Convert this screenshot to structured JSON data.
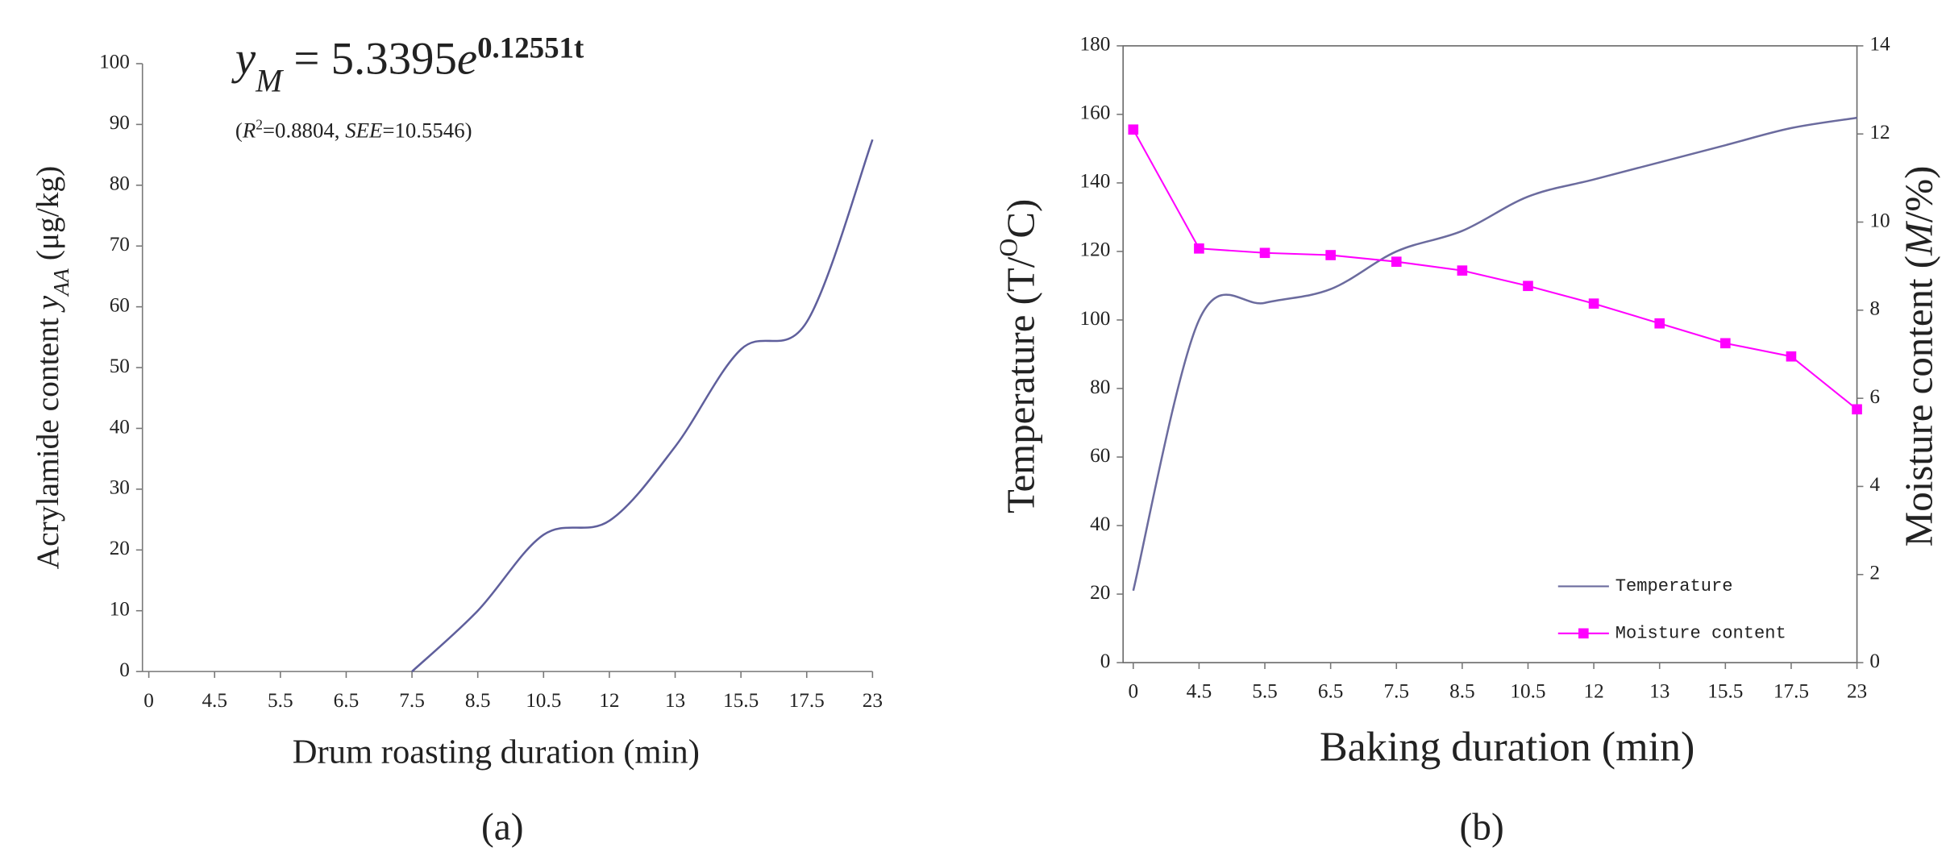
{
  "chart_data": [
    {
      "type": "line",
      "panel_label": "(a)",
      "equation": [
        {
          "text": "y",
          "style": "italic"
        },
        {
          "text": "M",
          "style": "sub-italic"
        },
        {
          "text": " = 5.3395"
        },
        {
          "text": "e",
          "style": "italic"
        },
        {
          "text": "0.12551t",
          "style": "sup-bold"
        }
      ],
      "fit_stats": [
        {
          "text": "("
        },
        {
          "text": "R",
          "style": "italic"
        },
        {
          "text": "2",
          "style": "sup"
        },
        {
          "text": "=0.8804, "
        },
        {
          "text": "SEE",
          "style": "italic"
        },
        {
          "text": "=10.5546)"
        }
      ],
      "x_label": "Drum roasting duration (min)",
      "y_label": [
        {
          "text": "Acrylamide content "
        },
        {
          "text": "y",
          "style": "italic"
        },
        {
          "text": "AA",
          "style": "sub-italic"
        },
        {
          "text": " (μg/kg)"
        }
      ],
      "categories": [
        "0",
        "4.5",
        "5.5",
        "6.5",
        "7.5",
        "8.5",
        "10.5",
        "12",
        "13",
        "15.5",
        "17.5",
        "23"
      ],
      "series": [
        {
          "color": "#5f5f9c",
          "values": [
            null,
            null,
            null,
            null,
            0,
            10,
            22.5,
            24.8,
            37,
            53,
            57.5,
            87.5
          ]
        }
      ],
      "ylim": [
        0,
        100
      ],
      "yticks": [
        0,
        10,
        20,
        30,
        40,
        50,
        60,
        70,
        80,
        90,
        100
      ]
    },
    {
      "type": "line",
      "panel_label": "(b)",
      "x_label": "Baking duration (min)",
      "y_label": [
        {
          "text": "Temperature (T/"
        },
        {
          "text": "O",
          "style": "sup"
        },
        {
          "text": "C)"
        }
      ],
      "y2_label": [
        {
          "text": "Moisture content ("
        },
        {
          "text": "M",
          "style": "italic"
        },
        {
          "text": "/%)"
        }
      ],
      "categories": [
        "0",
        "4.5",
        "5.5",
        "6.5",
        "7.5",
        "8.5",
        "10.5",
        "12",
        "13",
        "15.5",
        "17.5",
        "23"
      ],
      "series": [
        {
          "name": "Temperature",
          "color": "#6b6b9e",
          "values": [
            21,
            100,
            105,
            109,
            120,
            126,
            136,
            141,
            146,
            151,
            156,
            159
          ]
        },
        {
          "name": "Moisture content",
          "color": "#ff00ff",
          "marker": "square",
          "axis": "y2",
          "values": [
            12.1,
            9.4,
            9.3,
            9.25,
            9.1,
            8.9,
            8.55,
            8.15,
            7.7,
            7.25,
            6.95,
            5.75
          ]
        }
      ],
      "ylim": [
        0,
        180
      ],
      "yticks": [
        0,
        20,
        40,
        60,
        80,
        100,
        120,
        140,
        160,
        180
      ],
      "y2lim": [
        0,
        14
      ],
      "y2ticks": [
        0,
        2,
        4,
        6,
        8,
        10,
        12,
        14
      ],
      "legend": "lower right",
      "frame": true
    }
  ]
}
